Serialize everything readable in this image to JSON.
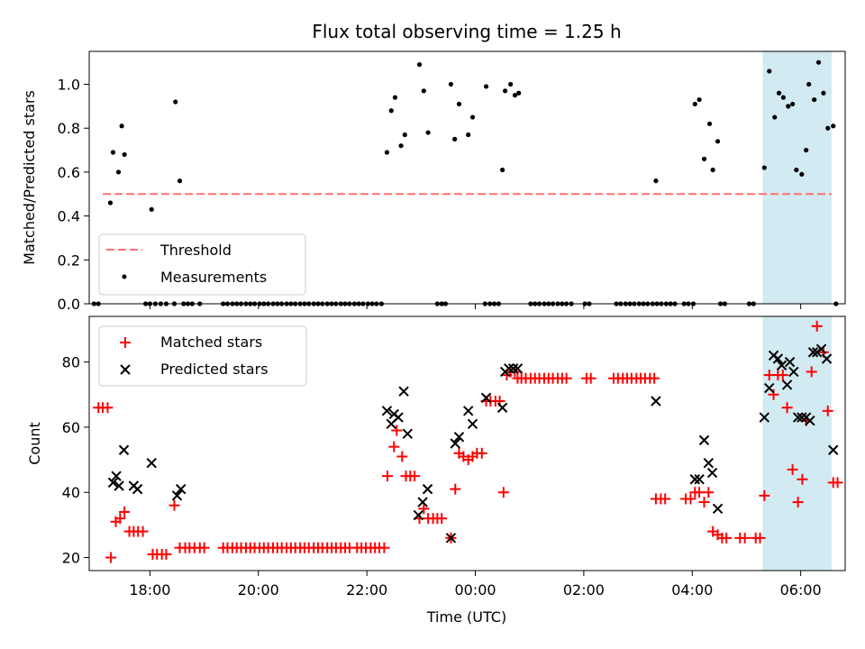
{
  "title": "Flux total observing time = 1.25 h",
  "colors": {
    "threshold": "#ff7070",
    "measurement": "#000000",
    "matched": "#ff0000",
    "predicted": "#000000",
    "highlight": "#add8e6"
  },
  "chart_data": [
    {
      "type": "scatter",
      "ylabel": "Matched/Predicted stars",
      "xlim": [
        16.88,
        6.82
      ],
      "ylim": [
        0,
        1.15
      ],
      "yticks": [
        "0.0",
        "0.2",
        "0.4",
        "0.6",
        "0.8",
        "1.0"
      ],
      "highlight_range": [
        5.3,
        6.57
      ],
      "legend": {
        "position": "lower-left",
        "threshold_label": "Threshold",
        "measurements_label": "Measurements"
      },
      "threshold": {
        "value": 0.5,
        "x_range": [
          17.13,
          6.57
        ]
      },
      "measurements": [
        [
          17.27,
          0.46
        ],
        [
          17.32,
          0.69
        ],
        [
          17.42,
          0.6
        ],
        [
          17.48,
          0.81
        ],
        [
          17.53,
          0.68
        ],
        [
          18.03,
          0.43
        ],
        [
          18.47,
          0.92
        ],
        [
          18.55,
          0.56
        ],
        [
          22.37,
          0.69
        ],
        [
          22.45,
          0.88
        ],
        [
          22.52,
          0.94
        ],
        [
          22.63,
          0.72
        ],
        [
          22.7,
          0.77
        ],
        [
          22.97,
          1.09
        ],
        [
          23.05,
          0.97
        ],
        [
          23.13,
          0.78
        ],
        [
          23.55,
          1.0
        ],
        [
          23.62,
          0.75
        ],
        [
          23.7,
          0.91
        ],
        [
          23.87,
          0.77
        ],
        [
          23.95,
          0.85
        ],
        [
          24.2,
          0.99
        ],
        [
          24.5,
          0.61
        ],
        [
          24.55,
          0.97
        ],
        [
          24.65,
          1.0
        ],
        [
          24.73,
          0.95
        ],
        [
          24.8,
          0.96
        ],
        [
          27.33,
          0.56
        ],
        [
          28.05,
          0.91
        ],
        [
          28.13,
          0.93
        ],
        [
          28.22,
          0.66
        ],
        [
          28.32,
          0.82
        ],
        [
          28.38,
          0.61
        ],
        [
          28.47,
          0.74
        ],
        [
          29.33,
          0.62
        ],
        [
          29.42,
          1.06
        ],
        [
          29.52,
          0.85
        ],
        [
          29.6,
          0.96
        ],
        [
          29.68,
          0.94
        ],
        [
          29.77,
          0.9
        ],
        [
          29.85,
          0.91
        ],
        [
          29.92,
          0.61
        ],
        [
          30.02,
          0.59
        ],
        [
          30.1,
          0.7
        ],
        [
          30.15,
          1.0
        ],
        [
          30.25,
          0.93
        ],
        [
          30.33,
          1.1
        ],
        [
          30.42,
          0.96
        ],
        [
          30.5,
          0.8
        ],
        [
          30.6,
          0.81
        ],
        [
          16.97,
          0
        ],
        [
          17.05,
          0
        ],
        [
          17.92,
          0
        ],
        [
          18.0,
          0
        ],
        [
          18.1,
          0
        ],
        [
          18.2,
          0
        ],
        [
          18.3,
          0
        ],
        [
          18.45,
          0
        ],
        [
          18.62,
          0
        ],
        [
          18.7,
          0
        ],
        [
          18.78,
          0
        ],
        [
          18.92,
          0
        ],
        [
          19.35,
          0
        ],
        [
          19.43,
          0
        ],
        [
          19.52,
          0
        ],
        [
          19.6,
          0
        ],
        [
          19.68,
          0
        ],
        [
          19.77,
          0
        ],
        [
          19.85,
          0
        ],
        [
          19.93,
          0
        ],
        [
          20.02,
          0
        ],
        [
          20.1,
          0
        ],
        [
          20.18,
          0
        ],
        [
          20.27,
          0
        ],
        [
          20.35,
          0
        ],
        [
          20.43,
          0
        ],
        [
          20.52,
          0
        ],
        [
          20.6,
          0
        ],
        [
          20.68,
          0
        ],
        [
          20.77,
          0
        ],
        [
          20.85,
          0
        ],
        [
          20.93,
          0
        ],
        [
          21.02,
          0
        ],
        [
          21.1,
          0
        ],
        [
          21.18,
          0
        ],
        [
          21.27,
          0
        ],
        [
          21.35,
          0
        ],
        [
          21.43,
          0
        ],
        [
          21.52,
          0
        ],
        [
          21.6,
          0
        ],
        [
          21.68,
          0
        ],
        [
          21.77,
          0
        ],
        [
          21.85,
          0
        ],
        [
          21.93,
          0
        ],
        [
          22.02,
          0
        ],
        [
          22.1,
          0
        ],
        [
          22.18,
          0
        ],
        [
          22.27,
          0
        ],
        [
          23.3,
          0
        ],
        [
          23.38,
          0
        ],
        [
          23.45,
          0
        ],
        [
          24.18,
          0
        ],
        [
          24.27,
          0
        ],
        [
          24.35,
          0
        ],
        [
          24.43,
          0
        ],
        [
          25.02,
          0
        ],
        [
          25.1,
          0
        ],
        [
          25.18,
          0
        ],
        [
          25.27,
          0
        ],
        [
          25.35,
          0
        ],
        [
          25.43,
          0
        ],
        [
          25.52,
          0
        ],
        [
          25.6,
          0
        ],
        [
          25.68,
          0
        ],
        [
          25.77,
          0
        ],
        [
          26.02,
          0
        ],
        [
          26.1,
          0
        ],
        [
          26.6,
          0
        ],
        [
          26.68,
          0
        ],
        [
          26.77,
          0
        ],
        [
          26.85,
          0
        ],
        [
          26.93,
          0
        ],
        [
          27.02,
          0
        ],
        [
          27.1,
          0
        ],
        [
          27.18,
          0
        ],
        [
          27.27,
          0
        ],
        [
          27.35,
          0
        ],
        [
          27.43,
          0
        ],
        [
          27.52,
          0
        ],
        [
          27.6,
          0
        ],
        [
          27.68,
          0
        ],
        [
          27.85,
          0
        ],
        [
          27.93,
          0
        ],
        [
          28.02,
          0
        ],
        [
          28.52,
          0
        ],
        [
          28.6,
          0
        ],
        [
          29.05,
          0
        ],
        [
          29.13,
          0
        ],
        [
          30.65,
          0
        ]
      ]
    },
    {
      "type": "scatter",
      "ylabel": "Count",
      "xlabel": "Time (UTC)",
      "xlim": [
        16.88,
        6.82
      ],
      "ylim": [
        16,
        94
      ],
      "yticks": [
        "20",
        "40",
        "60",
        "80"
      ],
      "xticks": [
        "18:00",
        "20:00",
        "22:00",
        "00:00",
        "02:00",
        "04:00",
        "06:00"
      ],
      "highlight_range": [
        5.3,
        6.57
      ],
      "legend": {
        "position": "upper-left",
        "matched_label": "Matched stars",
        "predicted_label": "Predicted stars"
      },
      "matched": [
        [
          17.05,
          66
        ],
        [
          17.13,
          66
        ],
        [
          17.22,
          66
        ],
        [
          17.28,
          20
        ],
        [
          17.37,
          31
        ],
        [
          17.45,
          32
        ],
        [
          17.53,
          34
        ],
        [
          17.62,
          28
        ],
        [
          17.7,
          28
        ],
        [
          17.78,
          28
        ],
        [
          17.87,
          28
        ],
        [
          18.05,
          21
        ],
        [
          18.13,
          21
        ],
        [
          18.22,
          21
        ],
        [
          18.3,
          21
        ],
        [
          18.45,
          36
        ],
        [
          18.55,
          23
        ],
        [
          18.65,
          23
        ],
        [
          18.73,
          23
        ],
        [
          18.82,
          23
        ],
        [
          18.92,
          23
        ],
        [
          19.0,
          23
        ],
        [
          19.35,
          23
        ],
        [
          19.43,
          23
        ],
        [
          19.52,
          23
        ],
        [
          19.6,
          23
        ],
        [
          19.68,
          23
        ],
        [
          19.77,
          23
        ],
        [
          19.85,
          23
        ],
        [
          19.93,
          23
        ],
        [
          20.02,
          23
        ],
        [
          20.1,
          23
        ],
        [
          20.18,
          23
        ],
        [
          20.27,
          23
        ],
        [
          20.35,
          23
        ],
        [
          20.43,
          23
        ],
        [
          20.52,
          23
        ],
        [
          20.6,
          23
        ],
        [
          20.68,
          23
        ],
        [
          20.77,
          23
        ],
        [
          20.85,
          23
        ],
        [
          20.93,
          23
        ],
        [
          21.02,
          23
        ],
        [
          21.1,
          23
        ],
        [
          21.18,
          23
        ],
        [
          21.27,
          23
        ],
        [
          21.35,
          23
        ],
        [
          21.43,
          23
        ],
        [
          21.52,
          23
        ],
        [
          21.6,
          23
        ],
        [
          21.68,
          23
        ],
        [
          21.82,
          23
        ],
        [
          21.9,
          23
        ],
        [
          21.98,
          23
        ],
        [
          22.07,
          23
        ],
        [
          22.15,
          23
        ],
        [
          22.23,
          23
        ],
        [
          22.32,
          23
        ],
        [
          22.38,
          45
        ],
        [
          22.5,
          54
        ],
        [
          22.55,
          59
        ],
        [
          22.65,
          51
        ],
        [
          22.72,
          45
        ],
        [
          22.8,
          45
        ],
        [
          22.88,
          45
        ],
        [
          22.97,
          32
        ],
        [
          23.05,
          35
        ],
        [
          23.13,
          32
        ],
        [
          23.22,
          32
        ],
        [
          23.3,
          32
        ],
        [
          23.38,
          32
        ],
        [
          23.55,
          26
        ],
        [
          23.63,
          41
        ],
        [
          23.7,
          52
        ],
        [
          23.78,
          51
        ],
        [
          23.87,
          50
        ],
        [
          23.95,
          51
        ],
        [
          24.03,
          52
        ],
        [
          24.12,
          52
        ],
        [
          24.2,
          68
        ],
        [
          24.28,
          68
        ],
        [
          24.37,
          68
        ],
        [
          24.45,
          68
        ],
        [
          24.52,
          40
        ],
        [
          24.58,
          76
        ],
        [
          24.65,
          77
        ],
        [
          24.73,
          77
        ],
        [
          24.78,
          75
        ],
        [
          24.85,
          75
        ],
        [
          24.93,
          75
        ],
        [
          25.02,
          75
        ],
        [
          25.1,
          75
        ],
        [
          25.18,
          75
        ],
        [
          25.27,
          75
        ],
        [
          25.35,
          75
        ],
        [
          25.43,
          75
        ],
        [
          25.52,
          75
        ],
        [
          25.6,
          75
        ],
        [
          25.68,
          75
        ],
        [
          26.05,
          75
        ],
        [
          26.13,
          75
        ],
        [
          26.55,
          75
        ],
        [
          26.63,
          75
        ],
        [
          26.72,
          75
        ],
        [
          26.8,
          75
        ],
        [
          26.88,
          75
        ],
        [
          26.97,
          75
        ],
        [
          27.05,
          75
        ],
        [
          27.13,
          75
        ],
        [
          27.22,
          75
        ],
        [
          27.3,
          75
        ],
        [
          27.33,
          38
        ],
        [
          27.42,
          38
        ],
        [
          27.5,
          38
        ],
        [
          27.88,
          38
        ],
        [
          27.97,
          38
        ],
        [
          28.05,
          40
        ],
        [
          28.13,
          40
        ],
        [
          28.22,
          37
        ],
        [
          28.3,
          40
        ],
        [
          28.38,
          28
        ],
        [
          28.47,
          27
        ],
        [
          28.55,
          26
        ],
        [
          28.63,
          26
        ],
        [
          28.88,
          26
        ],
        [
          28.97,
          26
        ],
        [
          29.17,
          26
        ],
        [
          29.25,
          26
        ],
        [
          29.33,
          39
        ],
        [
          29.42,
          76
        ],
        [
          29.5,
          70
        ],
        [
          29.58,
          76
        ],
        [
          29.67,
          76
        ],
        [
          29.75,
          66
        ],
        [
          29.85,
          47
        ],
        [
          29.95,
          37
        ],
        [
          30.03,
          44
        ],
        [
          30.1,
          62
        ],
        [
          30.2,
          77
        ],
        [
          30.3,
          91
        ],
        [
          30.42,
          83
        ],
        [
          30.5,
          65
        ],
        [
          30.6,
          43
        ],
        [
          30.68,
          43
        ]
      ],
      "predicted": [
        [
          17.32,
          43
        ],
        [
          17.38,
          45
        ],
        [
          17.43,
          42
        ],
        [
          17.52,
          53
        ],
        [
          17.7,
          42
        ],
        [
          17.77,
          41
        ],
        [
          18.03,
          49
        ],
        [
          18.5,
          39
        ],
        [
          18.57,
          41
        ],
        [
          22.37,
          65
        ],
        [
          22.45,
          61
        ],
        [
          22.5,
          64
        ],
        [
          22.58,
          63
        ],
        [
          22.68,
          71
        ],
        [
          22.75,
          58
        ],
        [
          22.95,
          33
        ],
        [
          23.03,
          37
        ],
        [
          23.12,
          41
        ],
        [
          23.55,
          26
        ],
        [
          23.63,
          55
        ],
        [
          23.7,
          57
        ],
        [
          23.87,
          65
        ],
        [
          23.95,
          61
        ],
        [
          24.2,
          69
        ],
        [
          24.5,
          66
        ],
        [
          24.55,
          77
        ],
        [
          24.62,
          78
        ],
        [
          24.7,
          78
        ],
        [
          24.78,
          78
        ],
        [
          27.33,
          68
        ],
        [
          28.05,
          44
        ],
        [
          28.13,
          44
        ],
        [
          28.22,
          56
        ],
        [
          28.3,
          49
        ],
        [
          28.37,
          46
        ],
        [
          28.47,
          35
        ],
        [
          29.33,
          63
        ],
        [
          29.42,
          72
        ],
        [
          29.5,
          82
        ],
        [
          29.58,
          81
        ],
        [
          29.65,
          79
        ],
        [
          29.75,
          73
        ],
        [
          29.8,
          80
        ],
        [
          29.87,
          77
        ],
        [
          29.95,
          63
        ],
        [
          30.02,
          63
        ],
        [
          30.1,
          63
        ],
        [
          30.17,
          62
        ],
        [
          30.23,
          83
        ],
        [
          30.3,
          83
        ],
        [
          30.38,
          84
        ],
        [
          30.48,
          81
        ],
        [
          30.6,
          53
        ]
      ]
    }
  ]
}
